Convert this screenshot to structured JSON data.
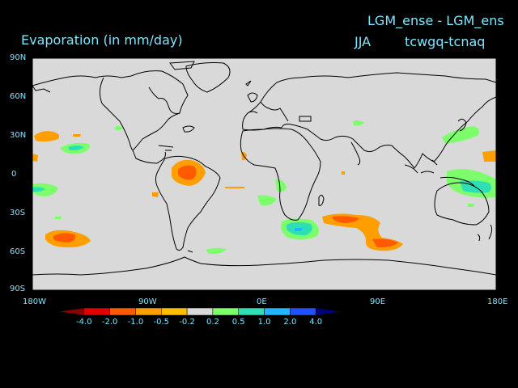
{
  "header": {
    "title_left": "Evaporation (in mm/day)",
    "title_right_top": "LGM_ense - LGM_ens",
    "season": "JJA",
    "variables": "tcwgq-tcnaq"
  },
  "axes": {
    "lat_labels": [
      "90N",
      "60N",
      "30N",
      "0",
      "30S",
      "60S",
      "90S"
    ],
    "lon_labels": [
      "180W",
      "90W",
      "0E",
      "90E",
      "180E"
    ]
  },
  "colorbar": {
    "labels": [
      "-4.0",
      "-2.0",
      "-1.0",
      "-0.5",
      "-0.2",
      "0.2",
      "0.5",
      "1.0",
      "2.0",
      "4.0"
    ],
    "colors": [
      "#8b0000",
      "#e00000",
      "#ff5a00",
      "#ff9e00",
      "#ffbf00",
      "#d9d9d9",
      "#7dff6b",
      "#2de0b4",
      "#1fb8ff",
      "#2050ff",
      "#000080"
    ]
  },
  "map_colors": {
    "background": "#d9d9d9",
    "orange": "#ff9e00",
    "red_orange": "#ff5a00",
    "green": "#7dff6b",
    "teal": "#2de0b4",
    "blue": "#1fb8ff"
  }
}
